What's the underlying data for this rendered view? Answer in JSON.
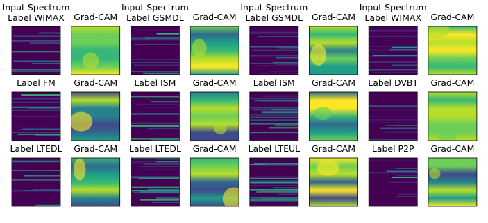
{
  "rows": [
    [
      {
        "lines": [
          "Input Spectrum",
          "Label WIMAX"
        ]
      },
      {
        "lines": [
          "Grad-CAM"
        ]
      },
      {
        "lines": [
          "Input Spectrum",
          "Label GSMDL"
        ]
      },
      {
        "lines": [
          "Grad-CAM"
        ]
      },
      {
        "lines": [
          "Input Spectrum",
          "Label GSMDL"
        ]
      },
      {
        "lines": [
          "Grad-CAM"
        ]
      },
      {
        "lines": [
          "Input Spectrum",
          "Label WIMAX"
        ]
      },
      {
        "lines": [
          "Grad-CAM"
        ]
      }
    ],
    [
      {
        "lines": [
          "Label FM"
        ]
      },
      {
        "lines": [
          "Grad-CAM"
        ]
      },
      {
        "lines": [
          "Label ISM"
        ]
      },
      {
        "lines": [
          "Grad-CAM"
        ]
      },
      {
        "lines": [
          "Label ISM"
        ]
      },
      {
        "lines": [
          "Grad-CAM"
        ]
      },
      {
        "lines": [
          "Label DVBT"
        ]
      },
      {
        "lines": [
          "Grad-CAM"
        ]
      }
    ],
    [
      {
        "lines": [
          "Label LTEDL"
        ]
      },
      {
        "lines": [
          "Grad-CAM"
        ]
      },
      {
        "lines": [
          "Label LTEDL"
        ]
      },
      {
        "lines": [
          "Grad-CAM"
        ]
      },
      {
        "lines": [
          "Label LTEUL"
        ]
      },
      {
        "lines": [
          "Grad-CAM"
        ]
      },
      {
        "lines": [
          "Label P2P"
        ]
      },
      {
        "lines": [
          "Grad-CAM"
        ]
      }
    ]
  ]
}
